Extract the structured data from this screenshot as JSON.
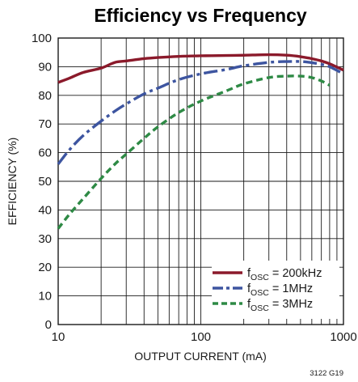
{
  "chart_data": {
    "type": "line",
    "title": "Efficiency vs Frequency",
    "xlabel": "OUTPUT CURRENT (mA)",
    "ylabel": "EFFICIENCY (%)",
    "x_scale": "log",
    "xlim": [
      10,
      1000
    ],
    "ylim": [
      0,
      100
    ],
    "x_ticks": [
      10,
      100,
      1000
    ],
    "x_tick_labels": [
      "10",
      "100",
      "1000"
    ],
    "y_ticks": [
      0,
      10,
      20,
      30,
      40,
      50,
      60,
      70,
      80,
      90,
      100
    ],
    "y_tick_labels": [
      "0",
      "10",
      "20",
      "30",
      "40",
      "50",
      "60",
      "70",
      "80",
      "90",
      "100"
    ],
    "grid": true,
    "legend_position": "bottom-right",
    "figure_code": "3122 G19",
    "series": [
      {
        "legend_main": "f",
        "legend_sub": "OSC",
        "legend_rest": " = 200kHz",
        "color": "#8b1a2b",
        "dash": "solid",
        "points": [
          [
            10,
            84.5
          ],
          [
            12,
            86
          ],
          [
            15,
            88
          ],
          [
            20,
            89.5
          ],
          [
            25,
            91.5
          ],
          [
            30,
            92
          ],
          [
            40,
            92.8
          ],
          [
            50,
            93.2
          ],
          [
            70,
            93.6
          ],
          [
            100,
            93.8
          ],
          [
            150,
            93.9
          ],
          [
            200,
            94
          ],
          [
            300,
            94.2
          ],
          [
            400,
            94
          ],
          [
            500,
            93.5
          ],
          [
            600,
            92.8
          ],
          [
            700,
            92
          ],
          [
            800,
            91
          ],
          [
            1000,
            88.8
          ]
        ]
      },
      {
        "legend_main": "f",
        "legend_sub": "OSC",
        "legend_rest": " = 1MHz",
        "color": "#3d55a0",
        "dash": "longdash",
        "points": [
          [
            10,
            56
          ],
          [
            12,
            61
          ],
          [
            15,
            66
          ],
          [
            20,
            71
          ],
          [
            25,
            74.5
          ],
          [
            30,
            77
          ],
          [
            40,
            80.5
          ],
          [
            50,
            82.5
          ],
          [
            70,
            85.5
          ],
          [
            100,
            87.5
          ],
          [
            150,
            89
          ],
          [
            200,
            90.3
          ],
          [
            300,
            91.5
          ],
          [
            400,
            91.8
          ],
          [
            500,
            91.8
          ],
          [
            600,
            91.4
          ],
          [
            700,
            90.8
          ],
          [
            800,
            90
          ],
          [
            1000,
            87.5
          ]
        ]
      },
      {
        "legend_main": "f",
        "legend_sub": "OSC",
        "legend_rest": " = 3MHz",
        "color": "#2e8a45",
        "dash": "shortdash",
        "points": [
          [
            10,
            33.5
          ],
          [
            12,
            38.5
          ],
          [
            15,
            44
          ],
          [
            20,
            51
          ],
          [
            25,
            56
          ],
          [
            30,
            59.5
          ],
          [
            40,
            65
          ],
          [
            50,
            69
          ],
          [
            70,
            74
          ],
          [
            100,
            78
          ],
          [
            150,
            81.5
          ],
          [
            200,
            84
          ],
          [
            300,
            86.2
          ],
          [
            400,
            86.7
          ],
          [
            500,
            86.7
          ],
          [
            600,
            86.2
          ],
          [
            700,
            85
          ],
          [
            800,
            83.5
          ]
        ]
      }
    ]
  }
}
